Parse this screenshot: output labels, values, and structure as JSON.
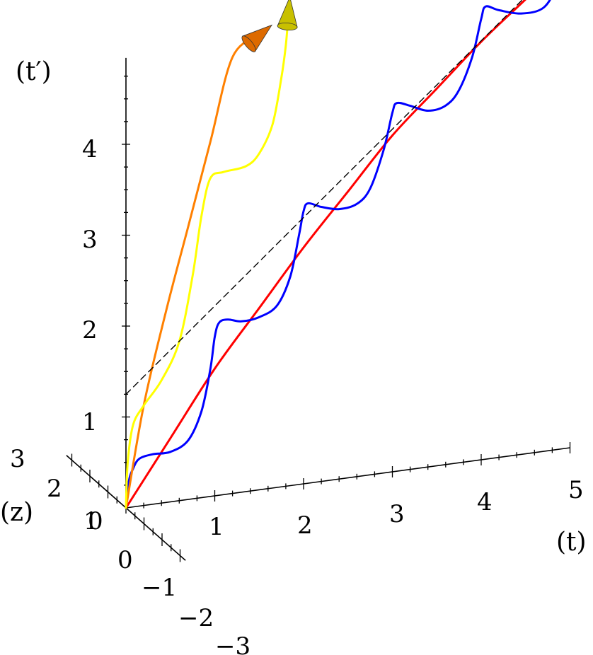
{
  "chart_data": {
    "type": "line",
    "projection": "3d",
    "title": "",
    "axes": {
      "x": {
        "label": "(t)",
        "range": [
          0,
          5
        ],
        "ticks": [
          "0",
          "1",
          "2",
          "3",
          "4",
          "5"
        ]
      },
      "y": {
        "label": "(t′)",
        "range": [
          0,
          5
        ],
        "ticks": [
          "1",
          "2",
          "3",
          "4"
        ]
      },
      "z": {
        "label": "(z)",
        "range": [
          -3,
          3
        ],
        "ticks": [
          "3",
          "2",
          "1",
          "0",
          "−1",
          "−2",
          "−3"
        ]
      }
    },
    "grid": false,
    "series": [
      {
        "color": "#ff0000",
        "style": "solid",
        "points": [
          [
            0,
            0
          ],
          [
            0.5,
            0.7
          ],
          [
            1,
            1.4
          ],
          [
            1.5,
            2.0
          ],
          [
            2,
            2.6
          ],
          [
            2.5,
            3.15
          ],
          [
            3,
            3.7
          ],
          [
            3.5,
            4.15
          ],
          [
            4,
            4.6
          ],
          [
            4.5,
            5.0
          ],
          [
            5,
            5.4
          ]
        ],
        "arrow_color": "#cc1010"
      },
      {
        "color": "#0000ff",
        "style": "solid",
        "points": [
          [
            0,
            0
          ],
          [
            0.03,
            0.28
          ],
          [
            0.08,
            0.42
          ],
          [
            0.15,
            0.52
          ],
          [
            0.3,
            0.55
          ],
          [
            0.5,
            0.55
          ],
          [
            0.7,
            0.65
          ],
          [
            0.85,
            0.95
          ],
          [
            0.95,
            1.4
          ],
          [
            1.0,
            1.75
          ],
          [
            1.05,
            1.9
          ],
          [
            1.15,
            1.92
          ],
          [
            1.3,
            1.88
          ],
          [
            1.5,
            1.9
          ],
          [
            1.7,
            2.0
          ],
          [
            1.85,
            2.3
          ],
          [
            1.95,
            2.75
          ],
          [
            2.0,
            3.0
          ],
          [
            2.05,
            3.08
          ],
          [
            2.2,
            3.02
          ],
          [
            2.4,
            2.97
          ],
          [
            2.6,
            3.0
          ],
          [
            2.75,
            3.15
          ],
          [
            2.9,
            3.55
          ],
          [
            3.0,
            3.95
          ],
          [
            3.05,
            4.05
          ],
          [
            3.2,
            4.0
          ],
          [
            3.4,
            3.92
          ],
          [
            3.6,
            3.95
          ],
          [
            3.75,
            4.1
          ],
          [
            3.9,
            4.45
          ],
          [
            4.0,
            4.85
          ],
          [
            4.05,
            4.98
          ],
          [
            4.2,
            4.92
          ],
          [
            4.45,
            4.85
          ],
          [
            4.7,
            4.88
          ],
          [
            4.85,
            5.1
          ],
          [
            4.97,
            5.45
          ]
        ],
        "arrow_color": "#1010ee"
      },
      {
        "color": "#ff8000",
        "style": "solid",
        "points": [
          [
            0,
            0
          ],
          [
            0.2,
            1.1
          ],
          [
            0.45,
            2.1
          ],
          [
            0.7,
            3.0
          ],
          [
            0.95,
            3.9
          ],
          [
            1.2,
            4.8
          ],
          [
            1.5,
            5.0
          ]
        ],
        "arrow_color": "#dd6a00"
      },
      {
        "color": "#ffff00",
        "style": "solid",
        "points": [
          [
            0,
            0
          ],
          [
            0.02,
            0.5
          ],
          [
            0.08,
            0.9
          ],
          [
            0.2,
            1.1
          ],
          [
            0.4,
            1.35
          ],
          [
            0.6,
            1.75
          ],
          [
            0.75,
            2.45
          ],
          [
            0.85,
            3.1
          ],
          [
            0.95,
            3.5
          ],
          [
            1.1,
            3.55
          ],
          [
            1.35,
            3.58
          ],
          [
            1.5,
            3.7
          ],
          [
            1.65,
            4.0
          ],
          [
            1.75,
            4.5
          ],
          [
            1.8,
            4.85
          ],
          [
            1.83,
            5.2
          ]
        ],
        "arrow_color": "#c8c000"
      },
      {
        "color": "#000000",
        "style": "dashed",
        "points": [
          [
            0,
            1.25
          ],
          [
            5,
            5.45
          ]
        ]
      }
    ]
  }
}
